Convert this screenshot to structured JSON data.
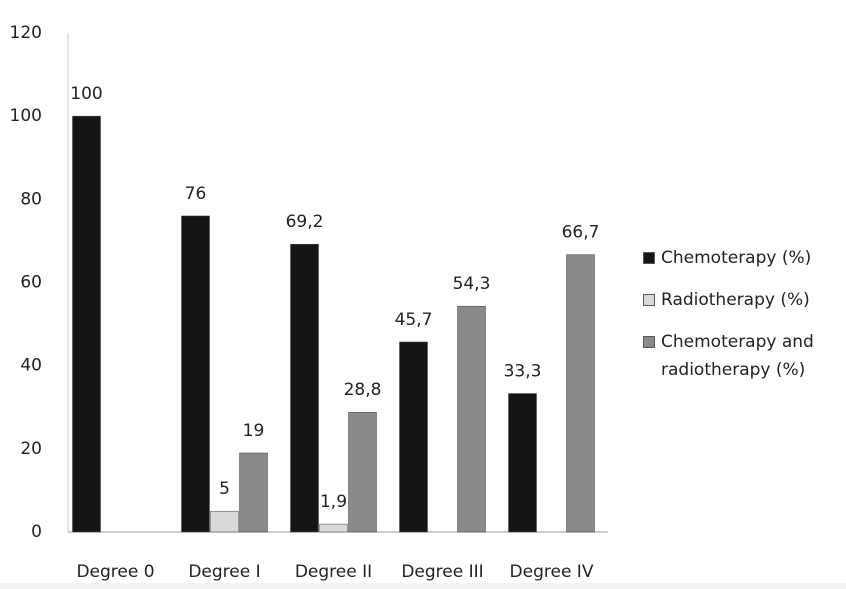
{
  "chart_data": {
    "type": "bar",
    "categories": [
      "Degree 0",
      "Degree I",
      "Degree II",
      "Degree III",
      "Degree IV"
    ],
    "series": [
      {
        "name": "Chemoterapy (%)",
        "color": "#151515",
        "values": [
          100,
          76,
          69.2,
          45.7,
          33.3
        ],
        "value_labels": [
          "100",
          "76",
          "69,2",
          "45,7",
          "33,3"
        ]
      },
      {
        "name": "Radiotherapy (%)",
        "color": "#d9d9d9",
        "values": [
          null,
          5,
          1.9,
          null,
          null
        ],
        "value_labels": [
          null,
          "5",
          "1,9",
          null,
          null
        ]
      },
      {
        "name": "Chemoterapy and radiotherapy (%)",
        "color": "#8a8a8a",
        "values": [
          null,
          19,
          28.8,
          54.3,
          66.7
        ],
        "value_labels": [
          null,
          "19",
          "28,8",
          "54,3",
          "66,7"
        ]
      }
    ],
    "ylim": [
      0,
      120
    ],
    "yticks": [
      0,
      20,
      40,
      60,
      80,
      100,
      120
    ],
    "grid": false,
    "legend": "right"
  }
}
